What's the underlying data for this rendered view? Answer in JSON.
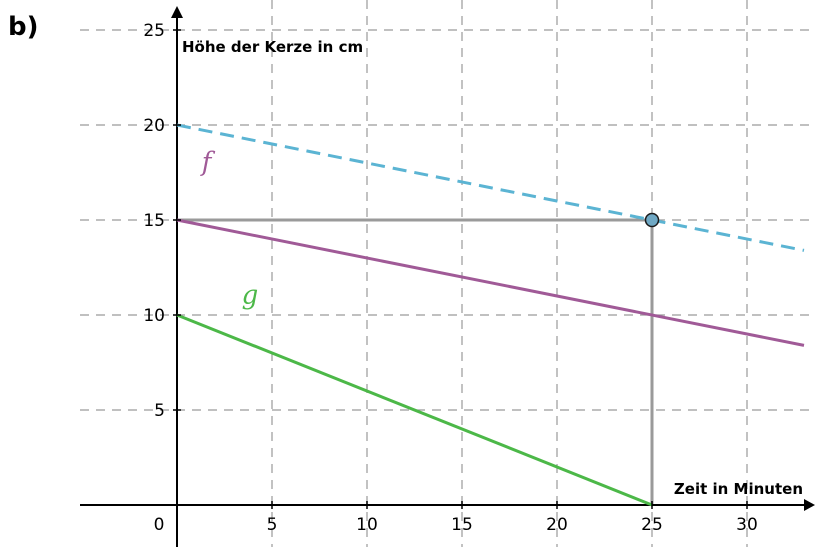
{
  "panel_label": "b)",
  "chart_data": {
    "type": "line",
    "title": "",
    "xlabel": "Zeit in Minuten",
    "ylabel": "Höhe der Kerze in cm",
    "xlim": [
      -5,
      33
    ],
    "ylim": [
      -1,
      26
    ],
    "x_ticks": [
      "0",
      "5",
      "10",
      "15",
      "20",
      "25",
      "30"
    ],
    "y_ticks": [
      "5",
      "10",
      "15",
      "20",
      "25"
    ],
    "grid": true,
    "series": [
      {
        "name": "f",
        "x": [
          0,
          33
        ],
        "y": [
          15,
          8.4
        ],
        "color": "#a05a97",
        "style": "solid"
      },
      {
        "name": "g",
        "x": [
          0,
          25
        ],
        "y": [
          10,
          0
        ],
        "color": "#4cb848",
        "style": "solid"
      },
      {
        "name": "",
        "x": [
          0,
          33
        ],
        "y": [
          20,
          13.4
        ],
        "color": "#5bb4d3",
        "style": "dashed"
      }
    ],
    "marked_point": {
      "x": 25,
      "y": 15,
      "color": "#6fa8c4"
    },
    "guide_lines": [
      {
        "x": [
          0,
          25
        ],
        "y": [
          15,
          15
        ]
      },
      {
        "x": [
          25,
          25
        ],
        "y": [
          0,
          15
        ]
      }
    ]
  }
}
